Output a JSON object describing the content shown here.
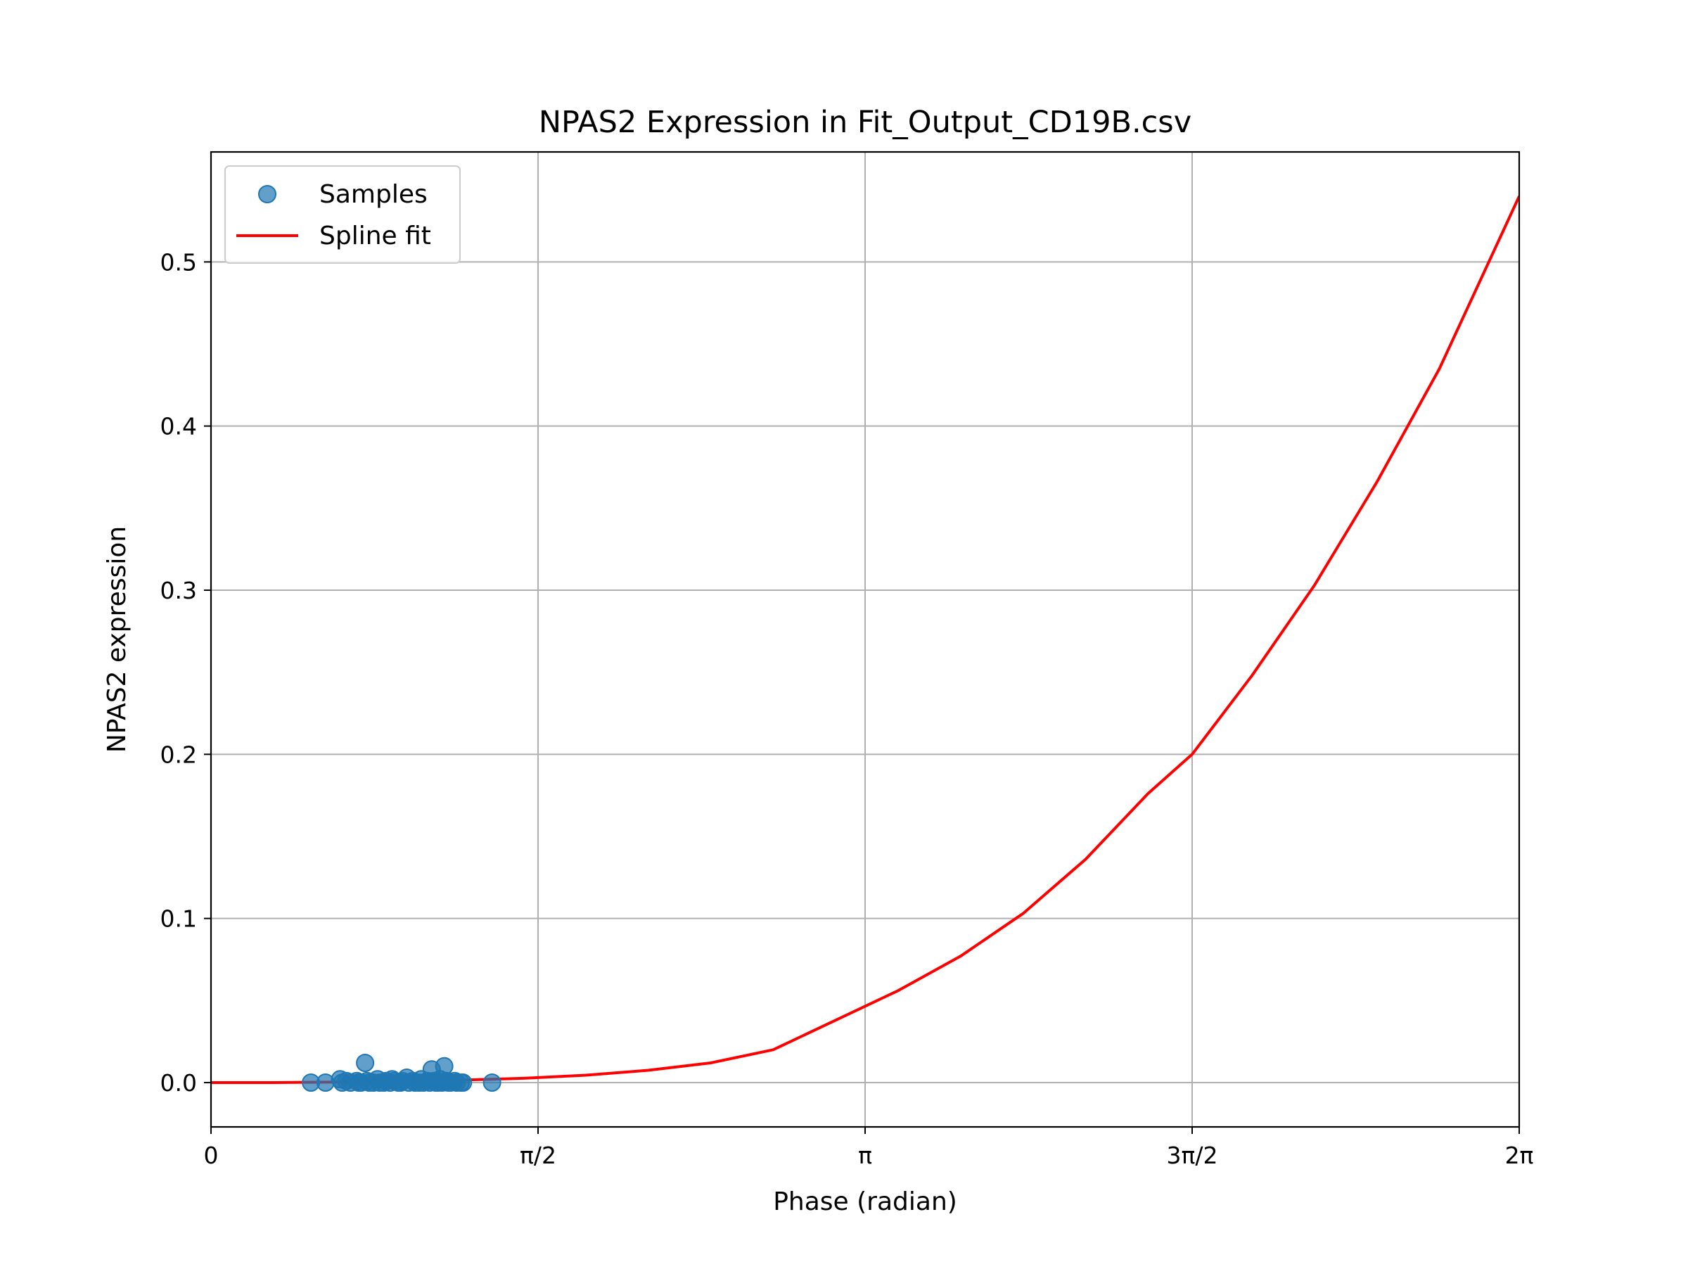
{
  "chart_data": {
    "type": "scatter",
    "title": "NPAS2 Expression in Fit_Output_CD19B.csv",
    "xlabel": "Phase (radian)",
    "ylabel": "NPAS2 expression",
    "xlim": [
      0,
      6.2832
    ],
    "ylim": [
      -0.027,
      0.567
    ],
    "grid": true,
    "legend_position": "top-left",
    "x_ticks": [
      {
        "value": 0,
        "label": "0"
      },
      {
        "value": 1.5708,
        "label": "π/2"
      },
      {
        "value": 3.1416,
        "label": "π"
      },
      {
        "value": 4.7124,
        "label": "3π/2"
      },
      {
        "value": 6.2832,
        "label": "2π"
      }
    ],
    "y_ticks": [
      {
        "value": 0.0,
        "label": "0.0"
      },
      {
        "value": 0.1,
        "label": "0.1"
      },
      {
        "value": 0.2,
        "label": "0.2"
      },
      {
        "value": 0.3,
        "label": "0.3"
      },
      {
        "value": 0.4,
        "label": "0.4"
      },
      {
        "value": 0.5,
        "label": "0.5"
      }
    ],
    "series": [
      {
        "name": "Samples",
        "kind": "scatter",
        "color": "#1f77b4",
        "x": [
          0.48,
          0.55,
          0.62,
          0.63,
          0.65,
          0.67,
          0.7,
          0.71,
          0.72,
          0.74,
          0.75,
          0.76,
          0.78,
          0.8,
          0.81,
          0.83,
          0.84,
          0.86,
          0.87,
          0.88,
          0.9,
          0.91,
          0.92,
          0.94,
          0.95,
          0.97,
          0.98,
          1.0,
          1.01,
          1.02,
          1.04,
          1.05,
          1.06,
          1.07,
          1.08,
          1.09,
          1.1,
          1.11,
          1.12,
          1.13,
          1.14,
          1.15,
          1.17,
          1.18,
          1.2,
          1.21,
          1.35
        ],
        "y": [
          0.0,
          0.0,
          0.002,
          0.0,
          0.001,
          0.0,
          0.001,
          0.0,
          0.0,
          0.012,
          0.001,
          0.0,
          0.0,
          0.002,
          0.0,
          0.0,
          0.001,
          0.0,
          0.002,
          0.001,
          0.0,
          0.0,
          0.001,
          0.003,
          0.0,
          0.001,
          0.0,
          0.0,
          0.002,
          0.0,
          0.001,
          0.0,
          0.008,
          0.001,
          0.0,
          0.0,
          0.002,
          0.0,
          0.01,
          0.001,
          0.0,
          0.0,
          0.001,
          0.0,
          0.0,
          0.0,
          0.0
        ]
      },
      {
        "name": "Spline fit",
        "kind": "line",
        "color": "#ff0000",
        "x": [
          0.0,
          0.3,
          0.6,
          0.9,
          1.2,
          1.5,
          1.8,
          2.1,
          2.4,
          2.7,
          3.0,
          3.3,
          3.6,
          3.9,
          4.2,
          4.5,
          4.7124,
          5.0,
          5.3,
          5.6,
          5.9,
          6.2832
        ],
        "y": [
          0.0,
          0.0,
          0.0003,
          0.0008,
          0.0015,
          0.0026,
          0.0045,
          0.0075,
          0.012,
          0.02,
          0.038,
          0.056,
          0.077,
          0.103,
          0.136,
          0.176,
          0.2,
          0.248,
          0.303,
          0.366,
          0.435,
          0.54
        ]
      }
    ]
  }
}
